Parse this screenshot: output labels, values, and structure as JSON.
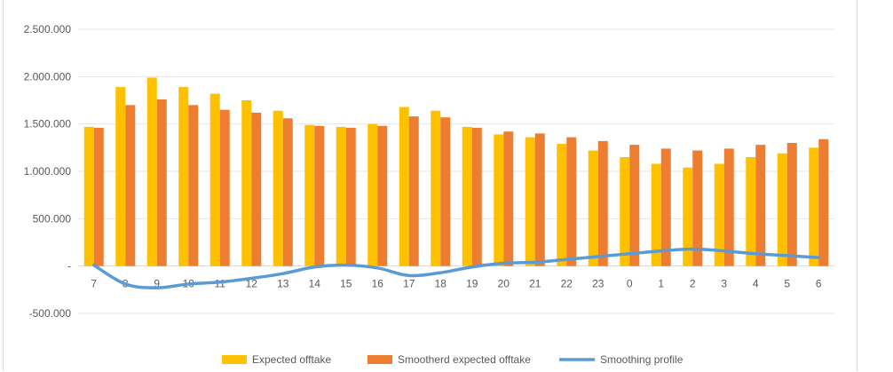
{
  "caption": "",
  "chart_data": {
    "type": "bar",
    "categories": [
      "7",
      "8",
      "9",
      "10",
      "11",
      "12",
      "13",
      "14",
      "15",
      "16",
      "17",
      "18",
      "19",
      "20",
      "21",
      "22",
      "23",
      "0",
      "1",
      "2",
      "3",
      "4",
      "5",
      "6"
    ],
    "series": [
      {
        "name": "Expected offtake",
        "type": "bar",
        "color": "#FFC000",
        "values": [
          1470000,
          1890000,
          1990000,
          1890000,
          1820000,
          1750000,
          1640000,
          1490000,
          1470000,
          1500000,
          1680000,
          1640000,
          1470000,
          1390000,
          1360000,
          1290000,
          1220000,
          1150000,
          1080000,
          1040000,
          1080000,
          1150000,
          1190000,
          1250000
        ]
      },
      {
        "name": "Smootherd expected offtake",
        "type": "bar",
        "color": "#ED7D31",
        "values": [
          1460000,
          1700000,
          1760000,
          1700000,
          1650000,
          1620000,
          1560000,
          1480000,
          1460000,
          1480000,
          1580000,
          1570000,
          1460000,
          1420000,
          1400000,
          1360000,
          1320000,
          1280000,
          1240000,
          1220000,
          1240000,
          1280000,
          1300000,
          1340000
        ]
      },
      {
        "name": "Smoothing profile",
        "type": "line",
        "color": "#5B9BD5",
        "values": [
          10000,
          -190000,
          -230000,
          -190000,
          -170000,
          -130000,
          -80000,
          -10000,
          10000,
          -20000,
          -100000,
          -70000,
          -10000,
          30000,
          40000,
          70000,
          100000,
          130000,
          160000,
          180000,
          160000,
          130000,
          110000,
          90000
        ]
      }
    ],
    "y_ticks": [
      "2.500.000",
      "2.000.000",
      "1.500.000",
      "1.000.000",
      "500.000",
      "-",
      "-500.000"
    ],
    "ylim": [
      -500000,
      2500000
    ],
    "grid": true,
    "legend": "bottom"
  }
}
